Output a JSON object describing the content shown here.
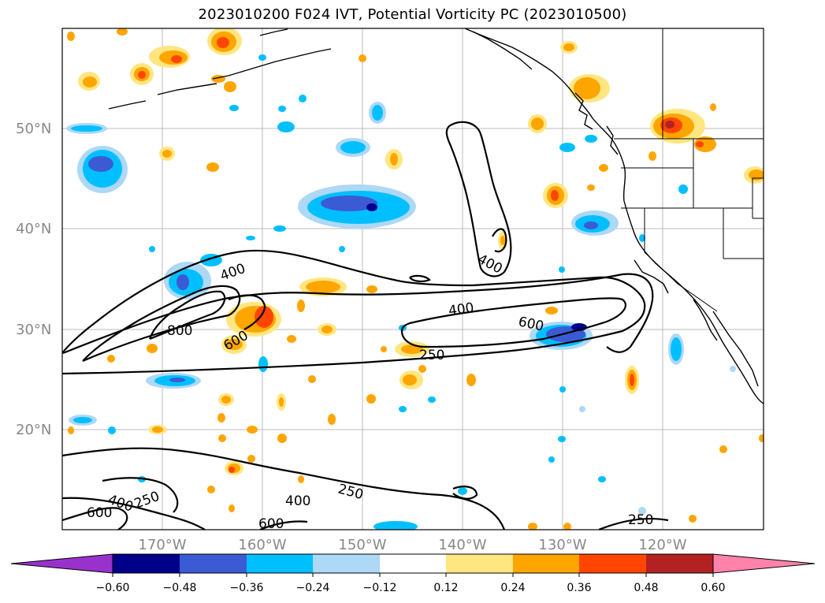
{
  "title": "2023010200 F024 IVT, Potential Vorticity PC (2023010500)",
  "map": {
    "lat_labels": [
      "50°N",
      "40°N",
      "30°N",
      "20°N"
    ],
    "lon_labels": [
      "170°W",
      "160°W",
      "150°W",
      "140°W",
      "130°W",
      "120°W"
    ],
    "contour_labels": [
      "400",
      "800",
      "600",
      "400",
      "400",
      "600",
      "250",
      "400",
      "250",
      "600",
      "600",
      "400",
      "250",
      "250"
    ]
  },
  "colorbar": {
    "ticks": [
      "−0.60",
      "−0.48",
      "−0.36",
      "−0.24",
      "−0.12",
      "0.12",
      "0.24",
      "0.36",
      "0.48",
      "0.60"
    ],
    "colors": [
      "#9932cc",
      "#00008b",
      "#3a5bd4",
      "#00bfff",
      "#add8f6",
      "#ffffff",
      "#ffe680",
      "#ffa500",
      "#ff4500",
      "#b22222",
      "#ff82ab"
    ]
  }
}
